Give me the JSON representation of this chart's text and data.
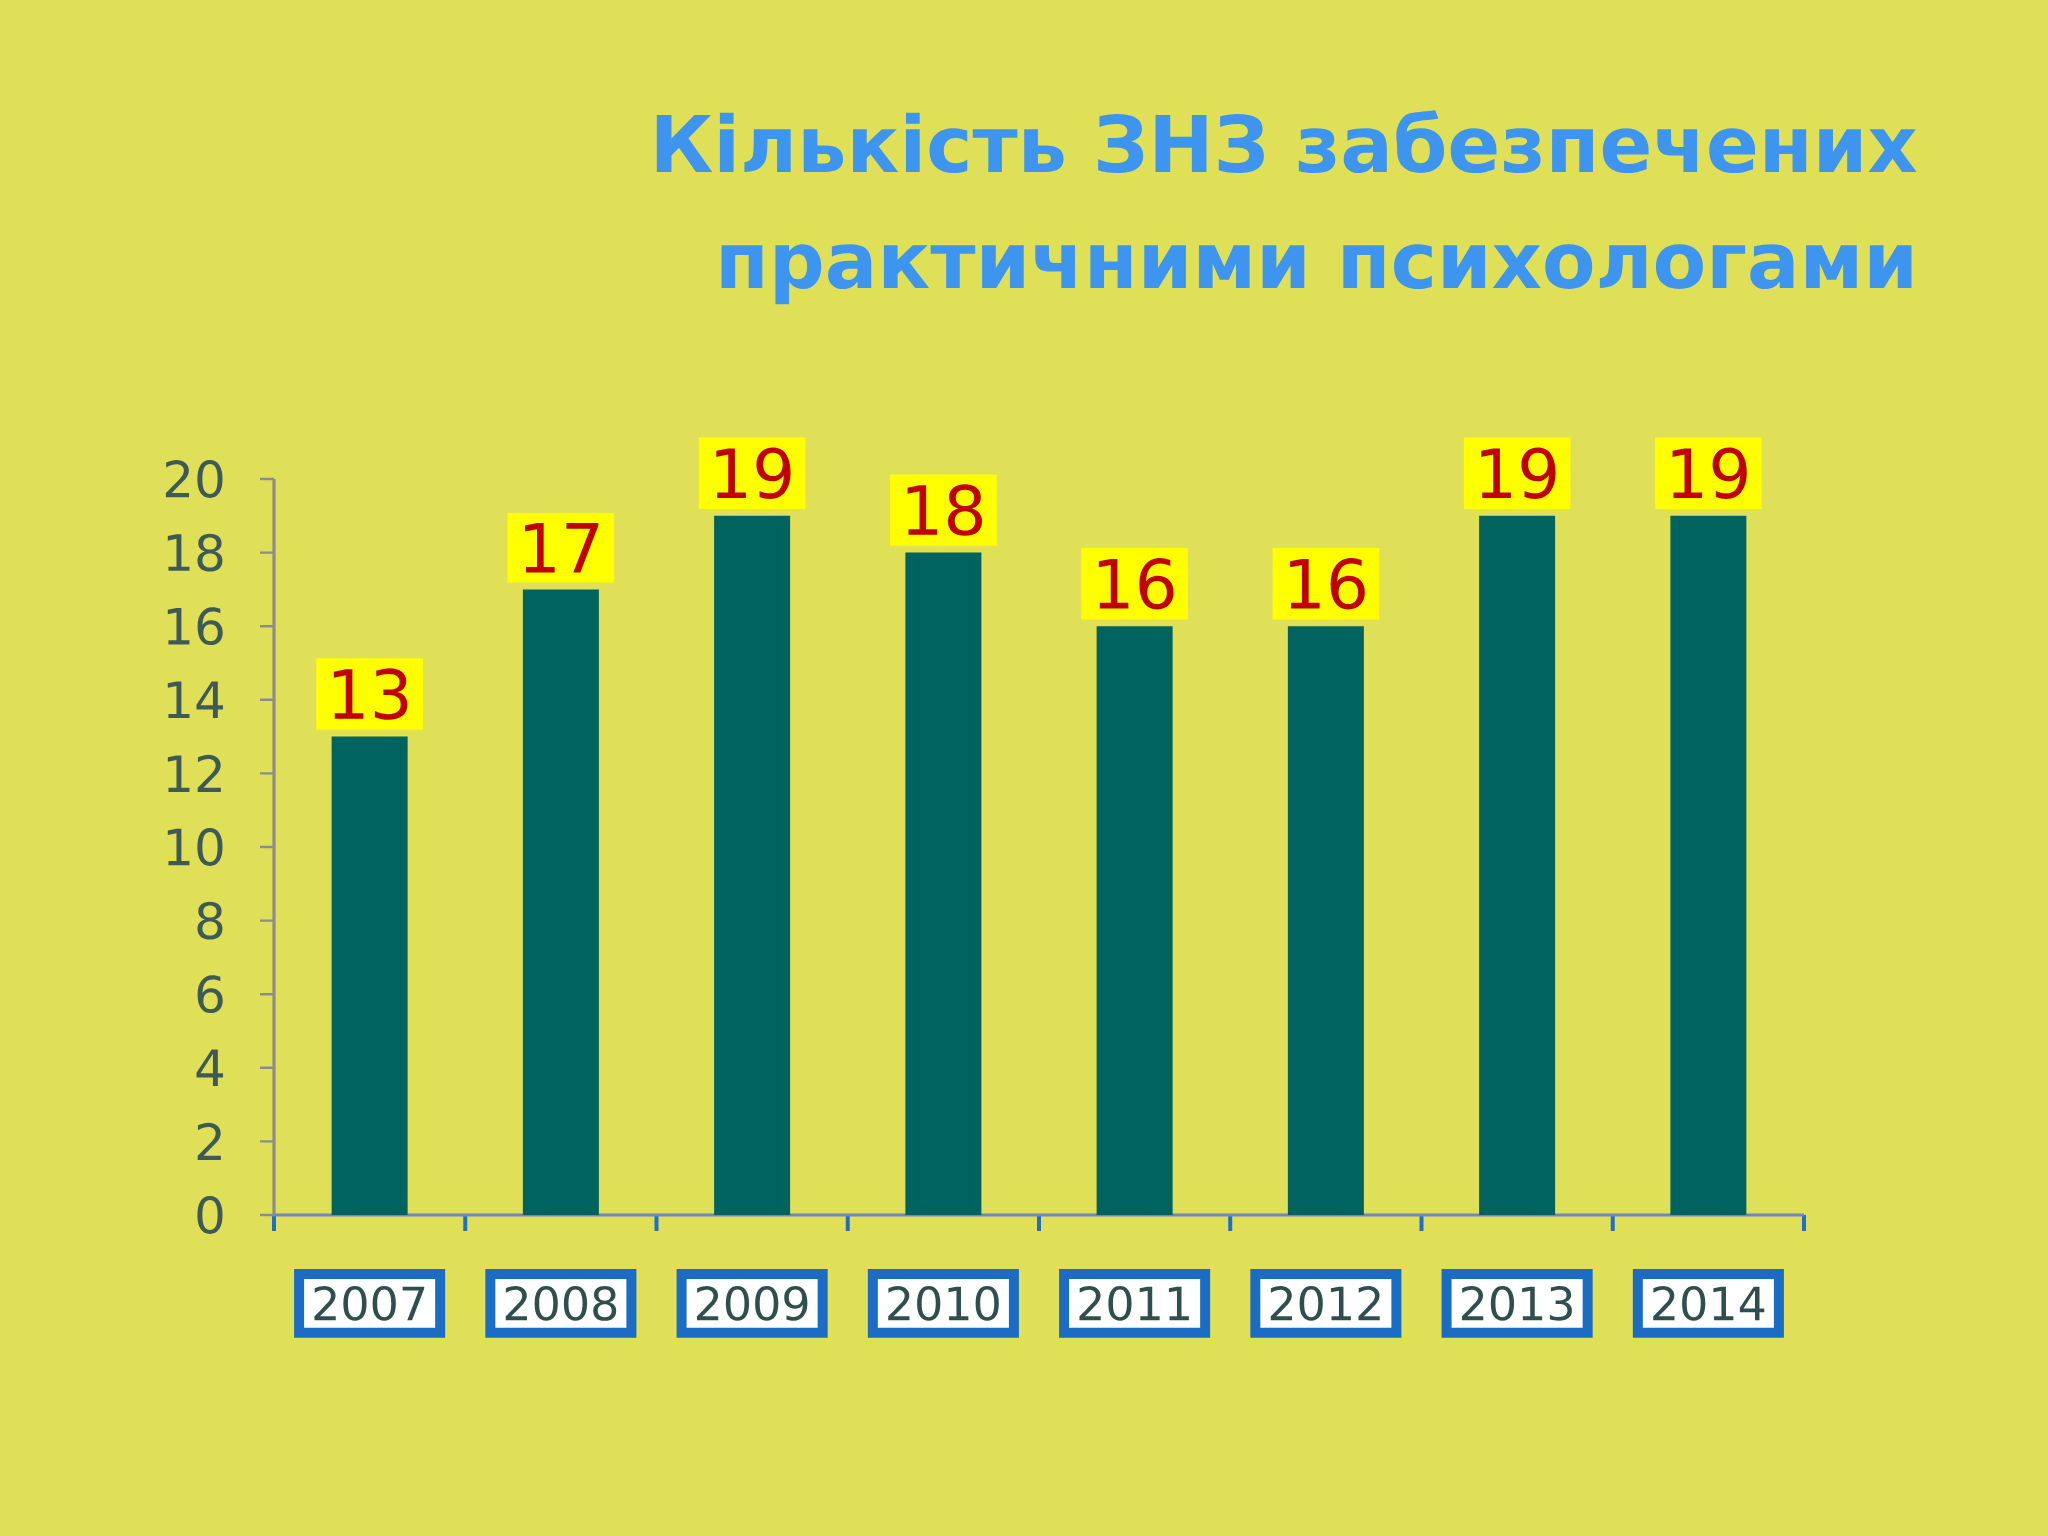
{
  "chart_data": {
    "type": "bar",
    "title": "Кількість ЗНЗ забезпечених практичними психологами",
    "categories": [
      "2007",
      "2008",
      "2009",
      "2010",
      "2011",
      "2012",
      "2013",
      "2014"
    ],
    "values": [
      13,
      17,
      19,
      18,
      16,
      16,
      19,
      19
    ],
    "color": "#006360",
    "ylim": [
      0,
      20
    ],
    "yticks": [
      0,
      2,
      4,
      6,
      8,
      10,
      12,
      14,
      16,
      18,
      20
    ],
    "data_labels": true
  }
}
